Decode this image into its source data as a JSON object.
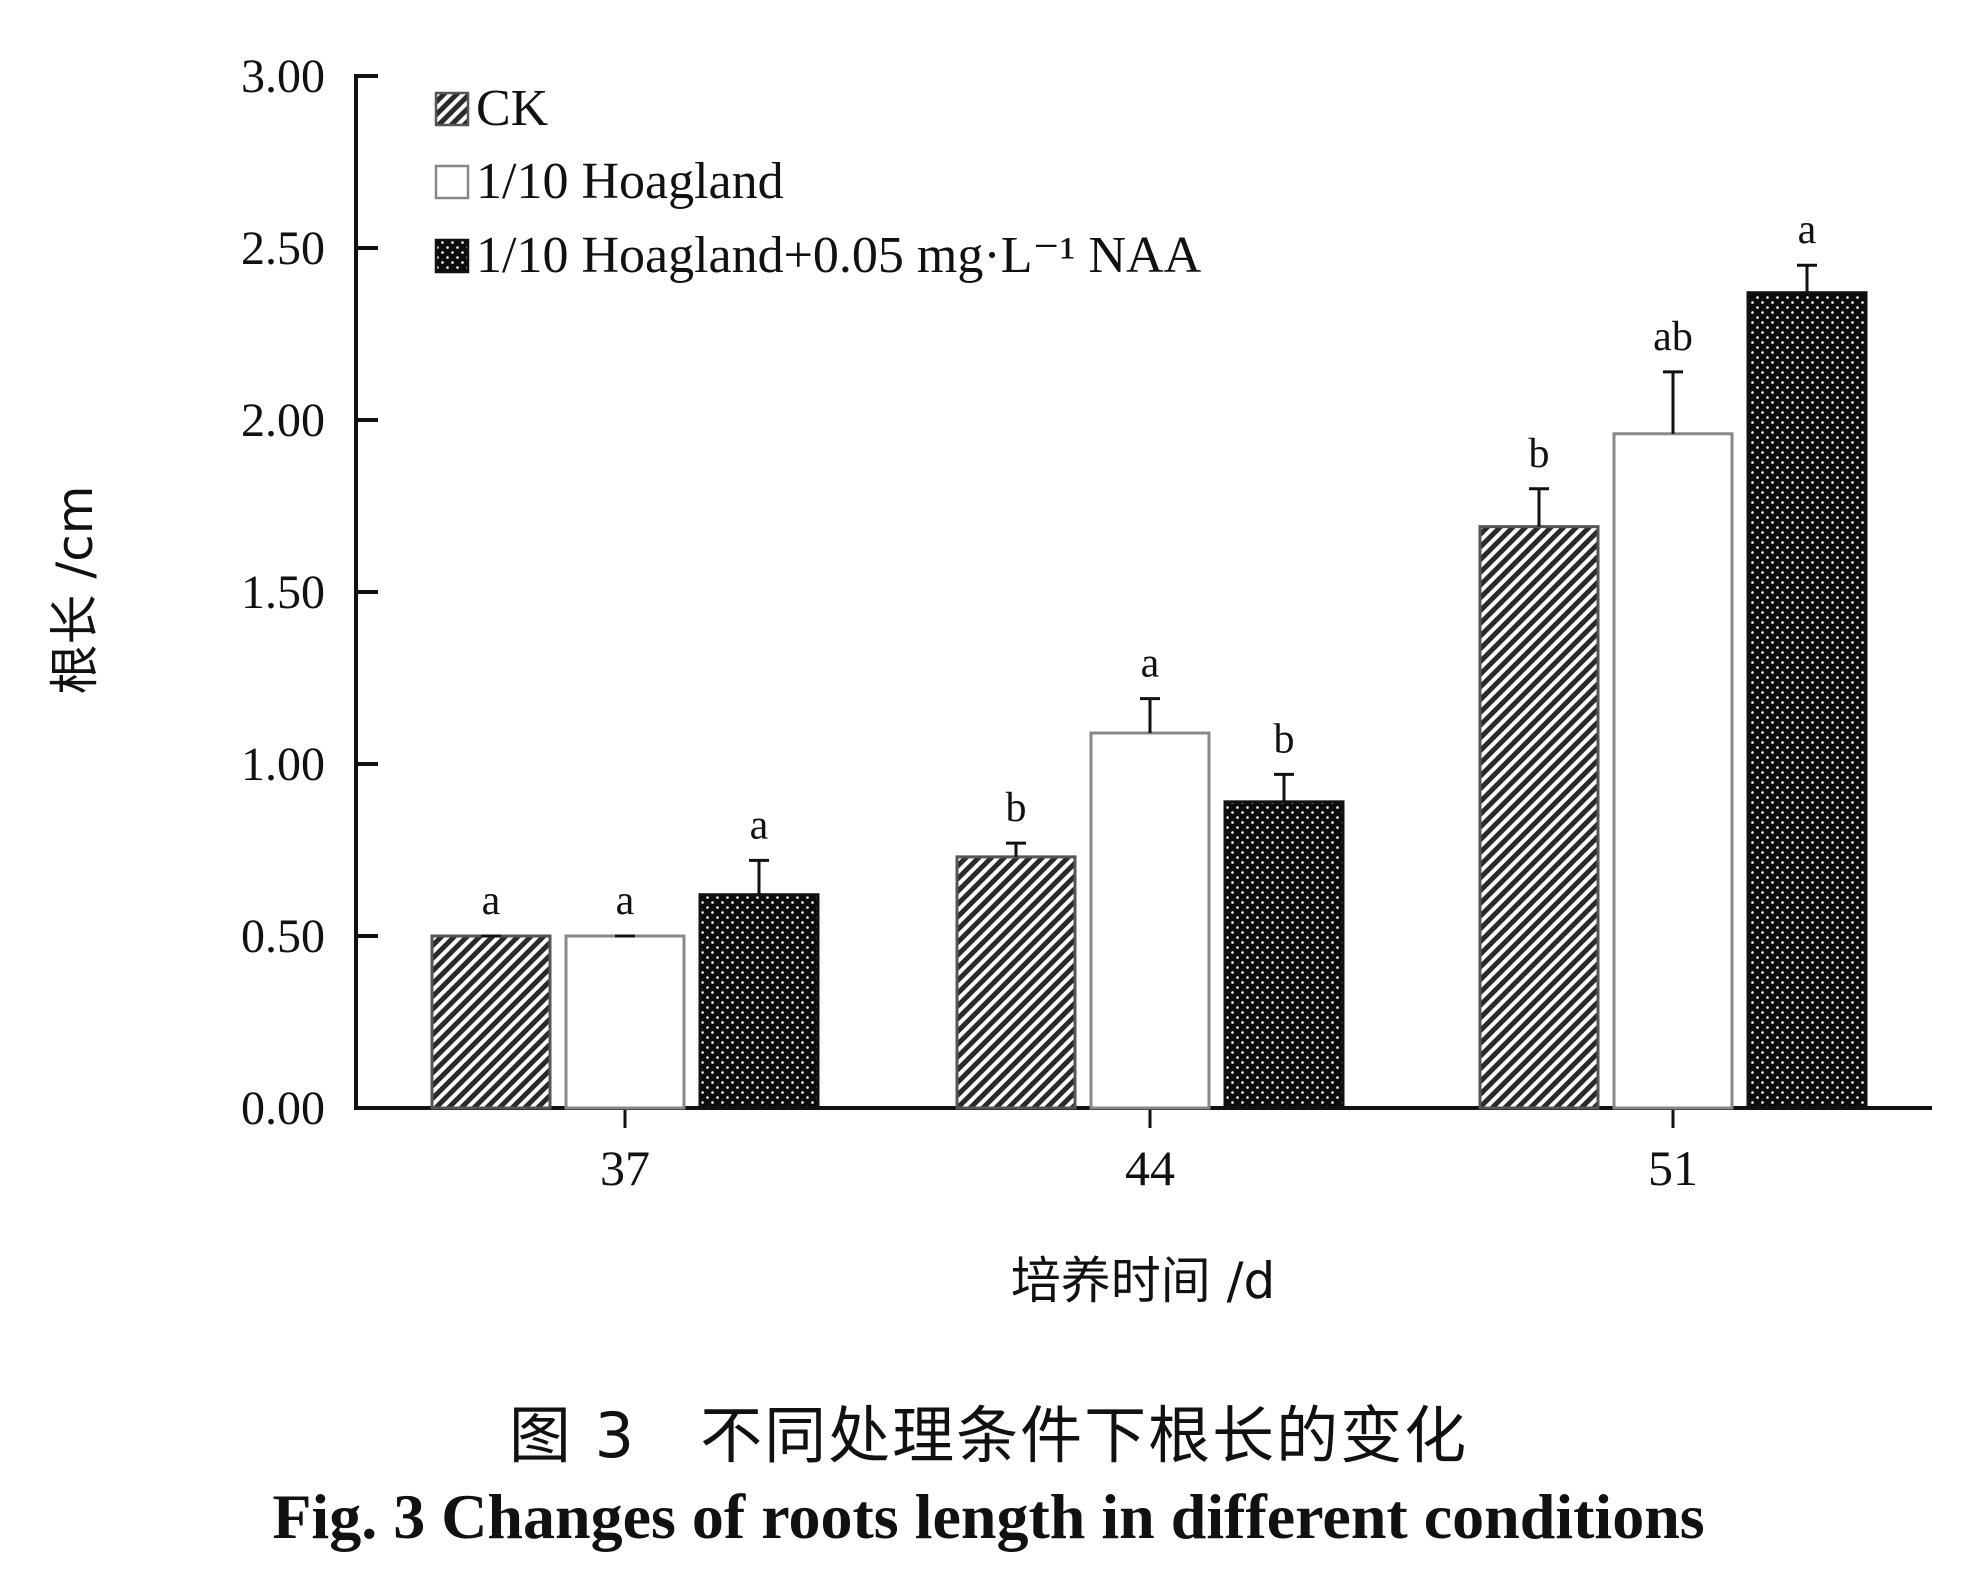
{
  "chart_data": {
    "type": "bar",
    "categories": [
      "37",
      "44",
      "51"
    ],
    "series": [
      {
        "name": "CK",
        "values": [
          0.5,
          0.73,
          1.69
        ],
        "errors": [
          0.0,
          0.04,
          0.11
        ],
        "labels": [
          "a",
          "b",
          "b"
        ],
        "pattern": "hatch",
        "color": "#333333"
      },
      {
        "name": "1/10 Hoagland",
        "values": [
          0.5,
          1.09,
          1.96
        ],
        "errors": [
          0.0,
          0.1,
          0.18
        ],
        "labels": [
          "a",
          "a",
          "ab"
        ],
        "pattern": "white",
        "color": "#ffffff"
      },
      {
        "name": "1/10 Hoagland+0.05 mg·L⁻¹ NAA",
        "values": [
          0.62,
          0.89,
          2.37
        ],
        "errors": [
          0.1,
          0.08,
          0.08
        ],
        "labels": [
          "a",
          "b",
          "a"
        ],
        "pattern": "dots",
        "color": "#111111"
      }
    ],
    "ylim": [
      0,
      3.0
    ],
    "yticks": [
      "0.00",
      "0.50",
      "1.00",
      "1.50",
      "2.00",
      "2.50",
      "3.00"
    ],
    "ylabel": "根长 /cm",
    "xlabel": "培养时间 /d",
    "legend_position": "top-left",
    "grid": false
  },
  "caption": {
    "cn": "图 3　不同处理条件下根长的变化",
    "en": "Fig. 3   Changes of roots length in different conditions"
  }
}
